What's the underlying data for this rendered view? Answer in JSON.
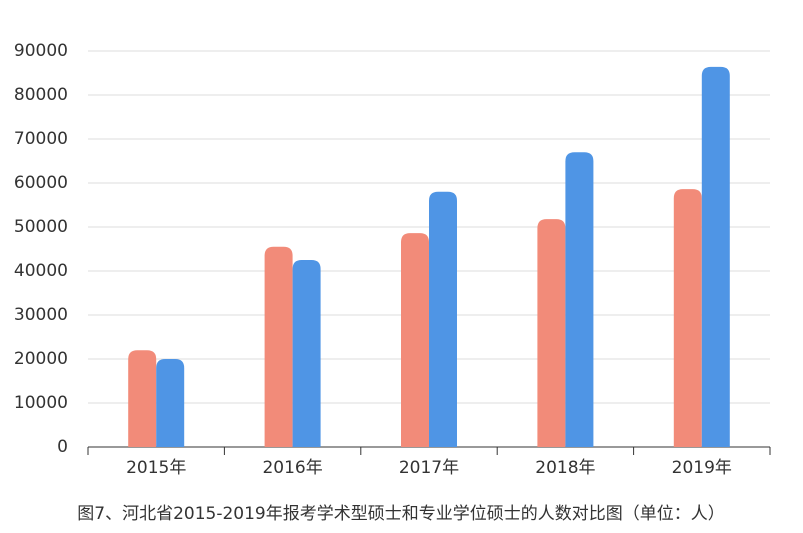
{
  "chart_data": {
    "type": "bar",
    "title": "图7、河北省2015-2019年报考学术型硕士和专业学位硕士的人数对比图（单位：人）",
    "categories": [
      "2015年",
      "2016年",
      "2017年",
      "2018年",
      "2019年"
    ],
    "series": [
      {
        "color": "#f28b79",
        "values": [
          22000,
          45500,
          48600,
          51800,
          58600
        ]
      },
      {
        "color": "#4f95e5",
        "values": [
          20000,
          42500,
          58000,
          67000,
          86400
        ]
      }
    ],
    "ylim": [
      0,
      90000
    ],
    "yticks": [
      0,
      10000,
      20000,
      30000,
      40000,
      50000,
      60000,
      70000,
      80000,
      90000
    ],
    "grid": true
  }
}
